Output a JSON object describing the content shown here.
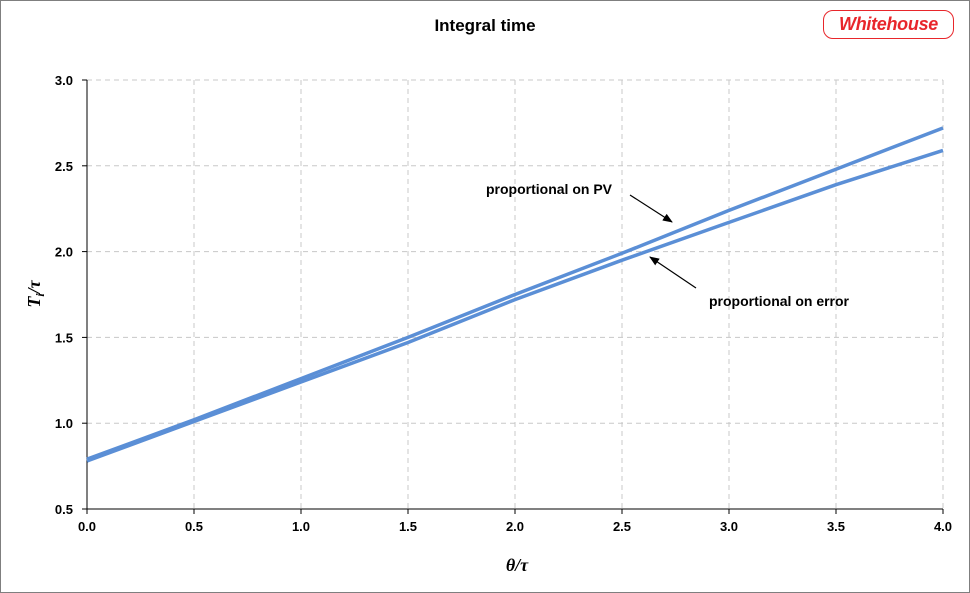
{
  "chart_data": {
    "type": "line",
    "title": "Integral time",
    "xlabel": "θ/τ",
    "ylabel": "Ti/τ",
    "ylabel_main": "T",
    "ylabel_sub": "i",
    "ylabel_rest": "/τ",
    "xlim": [
      0,
      4
    ],
    "ylim": [
      0.5,
      3
    ],
    "x_ticks": [
      "0.0",
      "0.5",
      "1.0",
      "1.5",
      "2.0",
      "2.5",
      "3.0",
      "3.5",
      "4.0"
    ],
    "y_ticks": [
      "0.5",
      "1.0",
      "1.5",
      "2.0",
      "2.5",
      "3.0"
    ],
    "grid": true,
    "series": [
      {
        "name": "proportional on PV",
        "x": [
          0,
          0.5,
          1.0,
          1.5,
          2.0,
          2.5,
          3.0,
          3.5,
          4.0
        ],
        "values": [
          0.79,
          1.02,
          1.26,
          1.5,
          1.75,
          1.99,
          2.24,
          2.48,
          2.72
        ]
      },
      {
        "name": "proportional on error",
        "x": [
          0,
          0.5,
          1.0,
          1.5,
          2.0,
          2.5,
          3.0,
          3.5,
          4.0
        ],
        "values": [
          0.78,
          1.01,
          1.24,
          1.47,
          1.72,
          1.95,
          2.17,
          2.39,
          2.59
        ]
      }
    ],
    "annotations": [
      {
        "text": "proportional on PV",
        "series": "proportional on PV"
      },
      {
        "text": "proportional on error",
        "series": "proportional on error"
      }
    ],
    "line_color": "#5b8fd6",
    "grid_color": "#c8c8c8"
  },
  "logo": {
    "text": "Whitehouse",
    "color": "#e8262b"
  }
}
